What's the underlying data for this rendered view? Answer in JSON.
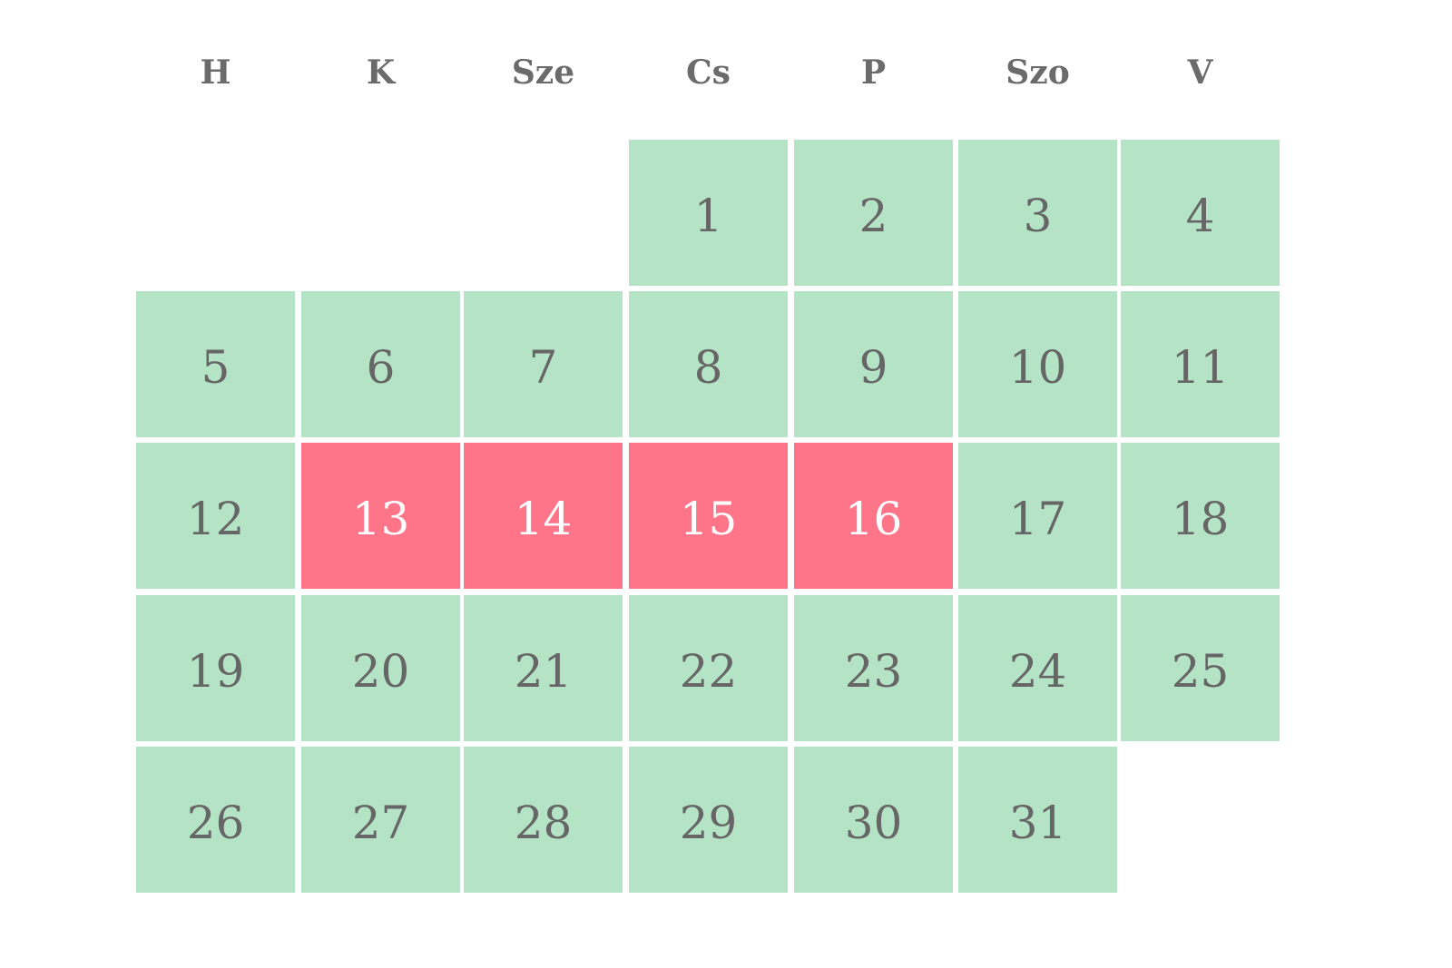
{
  "calendar": {
    "weekdays": [
      "H",
      "K",
      "Sze",
      "Cs",
      "P",
      "Szo",
      "V"
    ],
    "days": [
      {
        "label": "1",
        "col": 3,
        "row": 0,
        "status": "available"
      },
      {
        "label": "2",
        "col": 4,
        "row": 0,
        "status": "available"
      },
      {
        "label": "3",
        "col": 5,
        "row": 0,
        "status": "available"
      },
      {
        "label": "4",
        "col": 6,
        "row": 0,
        "status": "available"
      },
      {
        "label": "5",
        "col": 0,
        "row": 1,
        "status": "available"
      },
      {
        "label": "6",
        "col": 1,
        "row": 1,
        "status": "available"
      },
      {
        "label": "7",
        "col": 2,
        "row": 1,
        "status": "available"
      },
      {
        "label": "8",
        "col": 3,
        "row": 1,
        "status": "available"
      },
      {
        "label": "9",
        "col": 4,
        "row": 1,
        "status": "available"
      },
      {
        "label": "10",
        "col": 5,
        "row": 1,
        "status": "available"
      },
      {
        "label": "11",
        "col": 6,
        "row": 1,
        "status": "available"
      },
      {
        "label": "12",
        "col": 0,
        "row": 2,
        "status": "available"
      },
      {
        "label": "13",
        "col": 1,
        "row": 2,
        "status": "busy"
      },
      {
        "label": "14",
        "col": 2,
        "row": 2,
        "status": "busy"
      },
      {
        "label": "15",
        "col": 3,
        "row": 2,
        "status": "busy"
      },
      {
        "label": "16",
        "col": 4,
        "row": 2,
        "status": "busy"
      },
      {
        "label": "17",
        "col": 5,
        "row": 2,
        "status": "available"
      },
      {
        "label": "18",
        "col": 6,
        "row": 2,
        "status": "available"
      },
      {
        "label": "19",
        "col": 0,
        "row": 3,
        "status": "available"
      },
      {
        "label": "20",
        "col": 1,
        "row": 3,
        "status": "available"
      },
      {
        "label": "21",
        "col": 2,
        "row": 3,
        "status": "available"
      },
      {
        "label": "22",
        "col": 3,
        "row": 3,
        "status": "available"
      },
      {
        "label": "23",
        "col": 4,
        "row": 3,
        "status": "available"
      },
      {
        "label": "24",
        "col": 5,
        "row": 3,
        "status": "available"
      },
      {
        "label": "25",
        "col": 6,
        "row": 3,
        "status": "available"
      },
      {
        "label": "26",
        "col": 0,
        "row": 4,
        "status": "available"
      },
      {
        "label": "27",
        "col": 1,
        "row": 4,
        "status": "available"
      },
      {
        "label": "28",
        "col": 2,
        "row": 4,
        "status": "available"
      },
      {
        "label": "29",
        "col": 3,
        "row": 4,
        "status": "available"
      },
      {
        "label": "30",
        "col": 4,
        "row": 4,
        "status": "available"
      },
      {
        "label": "31",
        "col": 5,
        "row": 4,
        "status": "available"
      }
    ]
  },
  "colors": {
    "available": "#b5e3c6",
    "busy": "#fe7589",
    "text": "#666666",
    "text_on_busy": "#ffffff",
    "header_text": "#6b6b6b"
  }
}
